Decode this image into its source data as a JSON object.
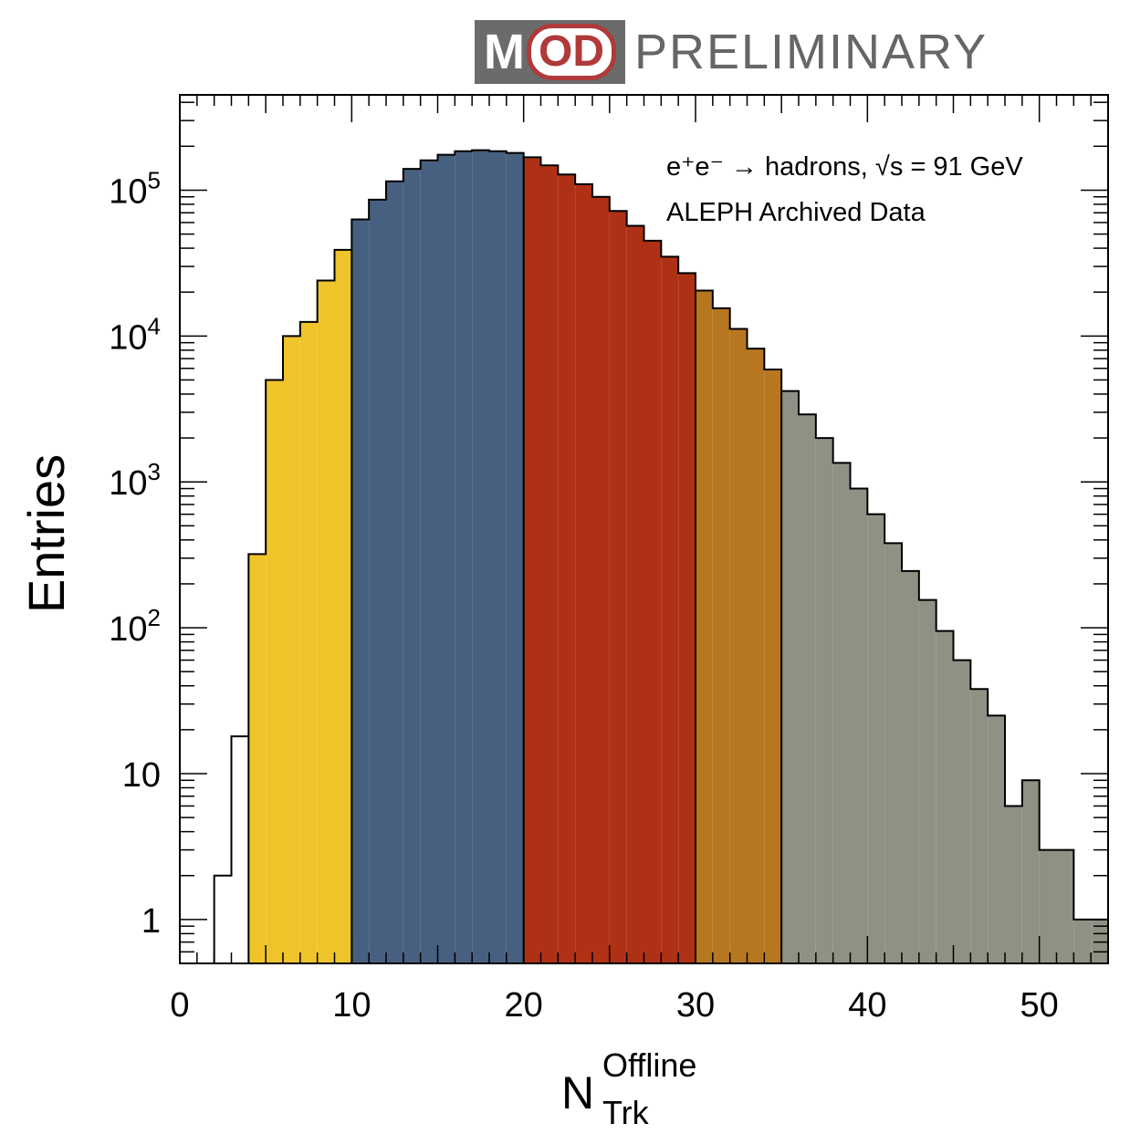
{
  "logo": {
    "mark_left": "M",
    "mark_right": "OD",
    "text": "PRELIMINARY"
  },
  "colors": {
    "bin_white": "#ffffff",
    "bin_yellow": "#efc42b",
    "bin_blue": "#486080",
    "bin_red": "#ae3116",
    "bin_orange": "#b77721",
    "bin_gray": "#8f9184",
    "outline": "#000000"
  },
  "chart_data": {
    "type": "bar",
    "subtype": "histogram",
    "xlabel_main": "N",
    "xlabel_sup": "Offline",
    "xlabel_sub": "Trk",
    "ylabel": "Entries",
    "annotation_line1": "e⁺e⁻ → hadrons, √s = 91 GeV",
    "annotation_line2": "ALEPH Archived Data",
    "xlim": [
      0,
      54
    ],
    "ylim": [
      0.5,
      450000
    ],
    "yscale": "log",
    "bin_width": 1,
    "x_ticks": [
      "0",
      "10",
      "20",
      "30",
      "40",
      "50"
    ],
    "y_ticks": [
      {
        "value": 1,
        "base": "1",
        "exp": ""
      },
      {
        "value": 10,
        "base": "10",
        "exp": ""
      },
      {
        "value": 100,
        "base": "10",
        "exp": "2"
      },
      {
        "value": 1000,
        "base": "10",
        "exp": "3"
      },
      {
        "value": 10000,
        "base": "10",
        "exp": "4"
      },
      {
        "value": 100000,
        "base": "10",
        "exp": "5"
      }
    ],
    "bins": [
      {
        "x": 2,
        "value": 2,
        "color": "bin_white"
      },
      {
        "x": 3,
        "value": 18,
        "color": "bin_white"
      },
      {
        "x": 4,
        "value": 320,
        "color": "bin_yellow"
      },
      {
        "x": 5,
        "value": 5000,
        "color": "bin_yellow"
      },
      {
        "x": 6,
        "value": 10000,
        "color": "bin_yellow"
      },
      {
        "x": 7,
        "value": 12500,
        "color": "bin_yellow"
      },
      {
        "x": 8,
        "value": 24000,
        "color": "bin_yellow"
      },
      {
        "x": 9,
        "value": 39000,
        "color": "bin_yellow"
      },
      {
        "x": 10,
        "value": 63000,
        "color": "bin_blue"
      },
      {
        "x": 11,
        "value": 86000,
        "color": "bin_blue"
      },
      {
        "x": 12,
        "value": 115000,
        "color": "bin_blue"
      },
      {
        "x": 13,
        "value": 140000,
        "color": "bin_blue"
      },
      {
        "x": 14,
        "value": 160000,
        "color": "bin_blue"
      },
      {
        "x": 15,
        "value": 175000,
        "color": "bin_blue"
      },
      {
        "x": 16,
        "value": 185000,
        "color": "bin_blue"
      },
      {
        "x": 17,
        "value": 188000,
        "color": "bin_blue"
      },
      {
        "x": 18,
        "value": 185000,
        "color": "bin_blue"
      },
      {
        "x": 19,
        "value": 180000,
        "color": "bin_blue"
      },
      {
        "x": 20,
        "value": 168000,
        "color": "bin_red"
      },
      {
        "x": 21,
        "value": 148000,
        "color": "bin_red"
      },
      {
        "x": 22,
        "value": 128000,
        "color": "bin_red"
      },
      {
        "x": 23,
        "value": 110000,
        "color": "bin_red"
      },
      {
        "x": 24,
        "value": 90000,
        "color": "bin_red"
      },
      {
        "x": 25,
        "value": 72000,
        "color": "bin_red"
      },
      {
        "x": 26,
        "value": 57000,
        "color": "bin_red"
      },
      {
        "x": 27,
        "value": 45000,
        "color": "bin_red"
      },
      {
        "x": 28,
        "value": 35000,
        "color": "bin_red"
      },
      {
        "x": 29,
        "value": 27000,
        "color": "bin_red"
      },
      {
        "x": 30,
        "value": 20500,
        "color": "bin_orange"
      },
      {
        "x": 31,
        "value": 15500,
        "color": "bin_orange"
      },
      {
        "x": 32,
        "value": 11200,
        "color": "bin_orange"
      },
      {
        "x": 33,
        "value": 8200,
        "color": "bin_orange"
      },
      {
        "x": 34,
        "value": 5900,
        "color": "bin_orange"
      },
      {
        "x": 35,
        "value": 4200,
        "color": "bin_gray"
      },
      {
        "x": 36,
        "value": 2900,
        "color": "bin_gray"
      },
      {
        "x": 37,
        "value": 2000,
        "color": "bin_gray"
      },
      {
        "x": 38,
        "value": 1350,
        "color": "bin_gray"
      },
      {
        "x": 39,
        "value": 900,
        "color": "bin_gray"
      },
      {
        "x": 40,
        "value": 600,
        "color": "bin_gray"
      },
      {
        "x": 41,
        "value": 380,
        "color": "bin_gray"
      },
      {
        "x": 42,
        "value": 245,
        "color": "bin_gray"
      },
      {
        "x": 43,
        "value": 155,
        "color": "bin_gray"
      },
      {
        "x": 44,
        "value": 95,
        "color": "bin_gray"
      },
      {
        "x": 45,
        "value": 60,
        "color": "bin_gray"
      },
      {
        "x": 46,
        "value": 38,
        "color": "bin_gray"
      },
      {
        "x": 47,
        "value": 25,
        "color": "bin_gray"
      },
      {
        "x": 48,
        "value": 6,
        "color": "bin_gray"
      },
      {
        "x": 49,
        "value": 9,
        "color": "bin_gray"
      },
      {
        "x": 50,
        "value": 3,
        "color": "bin_gray"
      },
      {
        "x": 51,
        "value": 3,
        "color": "bin_gray"
      },
      {
        "x": 52,
        "value": 1,
        "color": "bin_gray"
      },
      {
        "x": 53,
        "value": 1,
        "color": "bin_gray"
      }
    ]
  }
}
